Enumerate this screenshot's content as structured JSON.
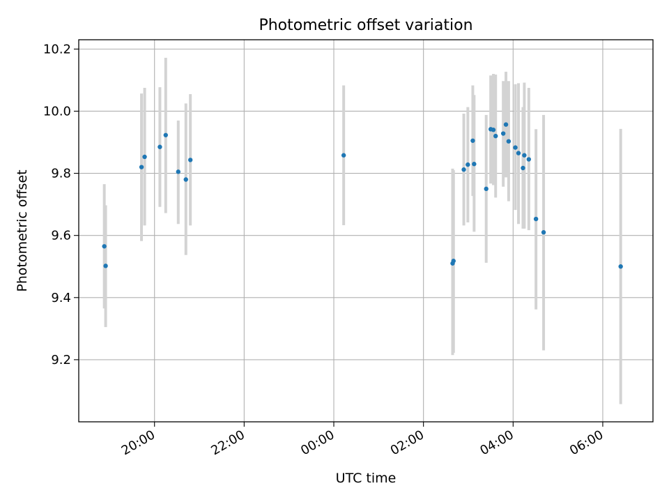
{
  "chart_data": {
    "type": "scatter",
    "title": "Photometric offset variation",
    "xlabel": "UTC time",
    "ylabel": "Photometric offset",
    "x_unit": "hours of day (UTC), continuing past midnight",
    "xlim": [
      18.31,
      31.12
    ],
    "ylim": [
      9.0,
      10.23
    ],
    "grid": true,
    "x_ticks": [
      {
        "value": 20,
        "label": "20:00"
      },
      {
        "value": 22,
        "label": "22:00"
      },
      {
        "value": 24,
        "label": "00:00"
      },
      {
        "value": 26,
        "label": "02:00"
      },
      {
        "value": 28,
        "label": "04:00"
      },
      {
        "value": 30,
        "label": "06:00"
      }
    ],
    "y_ticks": [
      {
        "value": 9.2,
        "label": "9.2"
      },
      {
        "value": 9.4,
        "label": "9.4"
      },
      {
        "value": 9.6,
        "label": "9.6"
      },
      {
        "value": 9.8,
        "label": "9.8"
      },
      {
        "value": 10.0,
        "label": "10.0"
      },
      {
        "value": 10.2,
        "label": "10.2"
      }
    ],
    "marker_color": "#1f77b4",
    "errorbar_color": "#d3d3d3",
    "points": [
      {
        "x": 18.88,
        "y": 9.565,
        "err_low": 9.365,
        "err_high": 9.765
      },
      {
        "x": 18.91,
        "y": 9.502,
        "err_low": 9.305,
        "err_high": 9.697
      },
      {
        "x": 19.71,
        "y": 9.82,
        "err_low": 9.582,
        "err_high": 10.057
      },
      {
        "x": 19.78,
        "y": 9.853,
        "err_low": 9.632,
        "err_high": 10.075
      },
      {
        "x": 20.12,
        "y": 9.885,
        "err_low": 9.692,
        "err_high": 10.077
      },
      {
        "x": 20.25,
        "y": 9.923,
        "err_low": 9.672,
        "err_high": 10.172
      },
      {
        "x": 20.53,
        "y": 9.805,
        "err_low": 9.637,
        "err_high": 9.97
      },
      {
        "x": 20.7,
        "y": 9.78,
        "err_low": 9.537,
        "err_high": 10.025
      },
      {
        "x": 20.8,
        "y": 9.843,
        "err_low": 9.632,
        "err_high": 10.055
      },
      {
        "x": 24.22,
        "y": 9.858,
        "err_low": 9.633,
        "err_high": 10.083
      },
      {
        "x": 26.65,
        "y": 9.51,
        "err_low": 9.215,
        "err_high": 9.815
      },
      {
        "x": 26.67,
        "y": 9.518,
        "err_low": 9.222,
        "err_high": 9.81
      },
      {
        "x": 26.9,
        "y": 9.812,
        "err_low": 9.632,
        "err_high": 9.992
      },
      {
        "x": 26.99,
        "y": 9.828,
        "err_low": 9.642,
        "err_high": 10.013
      },
      {
        "x": 27.1,
        "y": 9.905,
        "err_low": 9.727,
        "err_high": 10.083
      },
      {
        "x": 27.13,
        "y": 9.83,
        "err_low": 9.612,
        "err_high": 10.052
      },
      {
        "x": 27.4,
        "y": 9.75,
        "err_low": 9.512,
        "err_high": 9.988
      },
      {
        "x": 27.5,
        "y": 9.942,
        "err_low": 9.767,
        "err_high": 10.115
      },
      {
        "x": 27.56,
        "y": 9.94,
        "err_low": 9.762,
        "err_high": 10.12
      },
      {
        "x": 27.61,
        "y": 9.92,
        "err_low": 9.722,
        "err_high": 10.118
      },
      {
        "x": 27.78,
        "y": 9.928,
        "err_low": 9.757,
        "err_high": 10.097
      },
      {
        "x": 27.84,
        "y": 9.957,
        "err_low": 9.787,
        "err_high": 10.127
      },
      {
        "x": 27.9,
        "y": 9.903,
        "err_low": 9.71,
        "err_high": 10.097
      },
      {
        "x": 28.05,
        "y": 9.883,
        "err_low": 9.682,
        "err_high": 10.087
      },
      {
        "x": 28.12,
        "y": 9.865,
        "err_low": 9.637,
        "err_high": 10.09
      },
      {
        "x": 28.22,
        "y": 9.817,
        "err_low": 9.622,
        "err_high": 10.013
      },
      {
        "x": 28.25,
        "y": 9.858,
        "err_low": 9.622,
        "err_high": 10.092
      },
      {
        "x": 28.35,
        "y": 9.845,
        "err_low": 9.617,
        "err_high": 10.075
      },
      {
        "x": 28.51,
        "y": 9.653,
        "err_low": 9.362,
        "err_high": 9.942
      },
      {
        "x": 28.68,
        "y": 9.61,
        "err_low": 9.23,
        "err_high": 9.988
      },
      {
        "x": 30.4,
        "y": 9.5,
        "err_low": 9.057,
        "err_high": 9.943
      }
    ]
  }
}
